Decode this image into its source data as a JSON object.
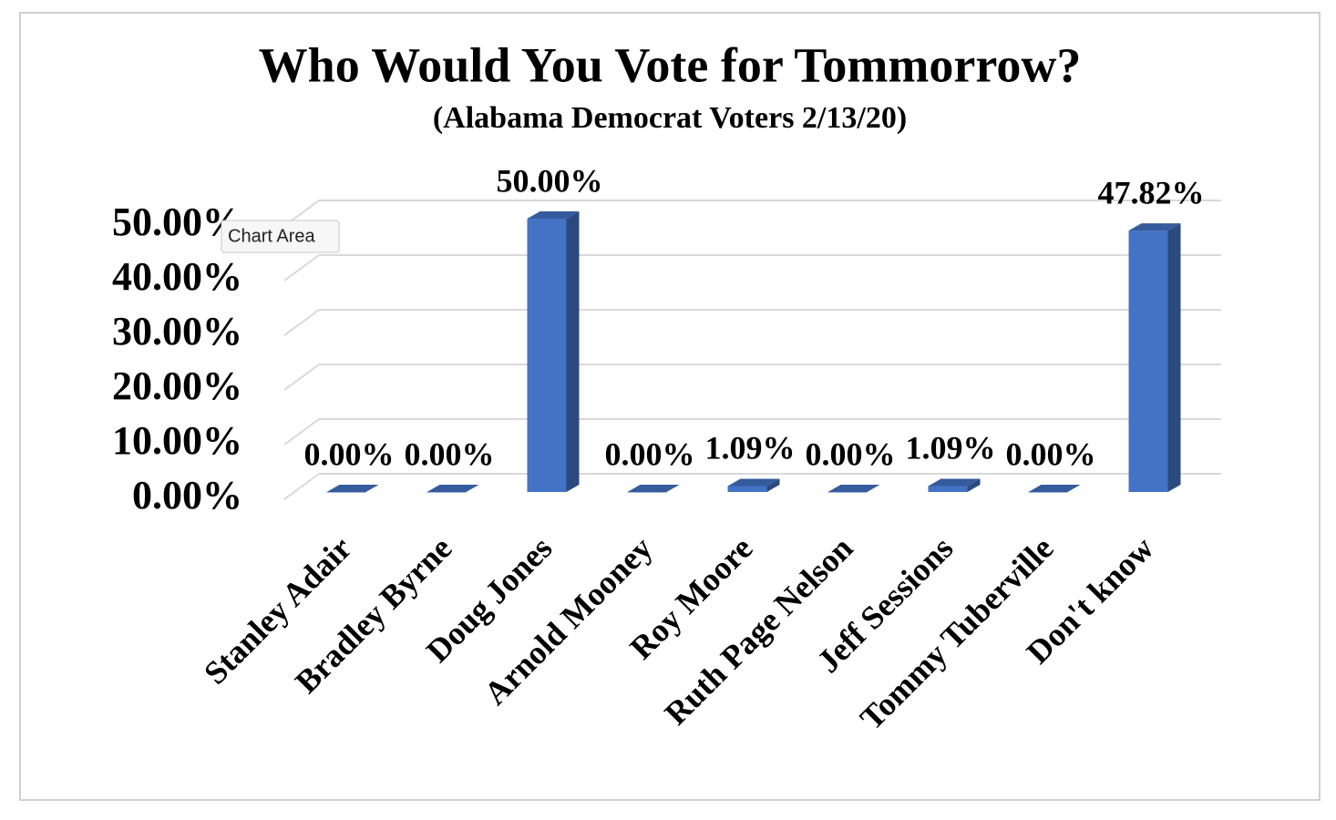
{
  "chart_data": {
    "type": "bar3d",
    "title": "Who Would You Vote for Tommorrow?",
    "subtitle": "(Alabama Democrat Voters 2/13/20)",
    "categories": [
      "Stanley Adair",
      "Bradley Byrne",
      "Doug Jones",
      "Arnold Mooney",
      "Roy Moore",
      "Ruth Page Nelson",
      "Jeff Sessions",
      "Tommy Tuberville",
      "Don't know"
    ],
    "values": [
      0,
      0,
      50,
      0,
      1.09,
      0,
      1.09,
      0,
      47.82
    ],
    "value_labels": [
      "0.00%",
      "0.00%",
      "50.00%",
      "0.00%",
      "1.09%",
      "0.00%",
      "1.09%",
      "0.00%",
      "47.82%"
    ],
    "color": "#4472c4",
    "ylim": [
      0,
      50
    ],
    "yticks": [
      {
        "value": 0,
        "label": "0.00%"
      },
      {
        "value": 10,
        "label": "10.00%"
      },
      {
        "value": 20,
        "label": "20.00%"
      },
      {
        "value": 30,
        "label": "30.00%"
      },
      {
        "value": 40,
        "label": "40.00%"
      },
      {
        "value": 50,
        "label": "50.00%"
      }
    ],
    "grid": true
  },
  "tooltip": "Chart Area"
}
